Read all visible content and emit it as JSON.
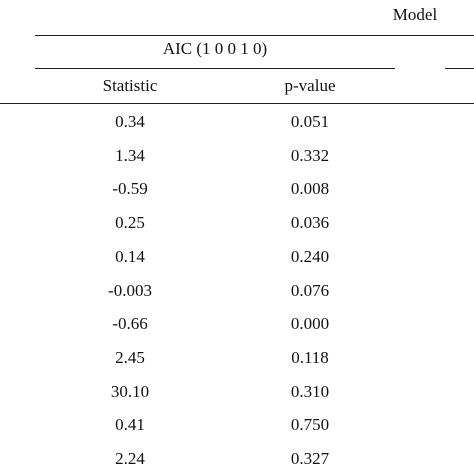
{
  "header": {
    "model": "Model",
    "group": "AIC (1 0 0 1 0)",
    "columns": [
      "Statistic",
      "p-value"
    ]
  },
  "table": {
    "rows": [
      [
        "0.34",
        "0.051"
      ],
      [
        "1.34",
        "0.332"
      ],
      [
        "-0.59",
        "0.008"
      ],
      [
        "0.25",
        "0.036"
      ],
      [
        "0.14",
        "0.240"
      ],
      [
        "-0.003",
        "0.076"
      ],
      [
        "-0.66",
        "0.000"
      ],
      [
        "2.45",
        "0.118"
      ],
      [
        "30.10",
        "0.310"
      ],
      [
        "0.41",
        "0.750"
      ],
      [
        "2.24",
        "0.327"
      ]
    ]
  }
}
